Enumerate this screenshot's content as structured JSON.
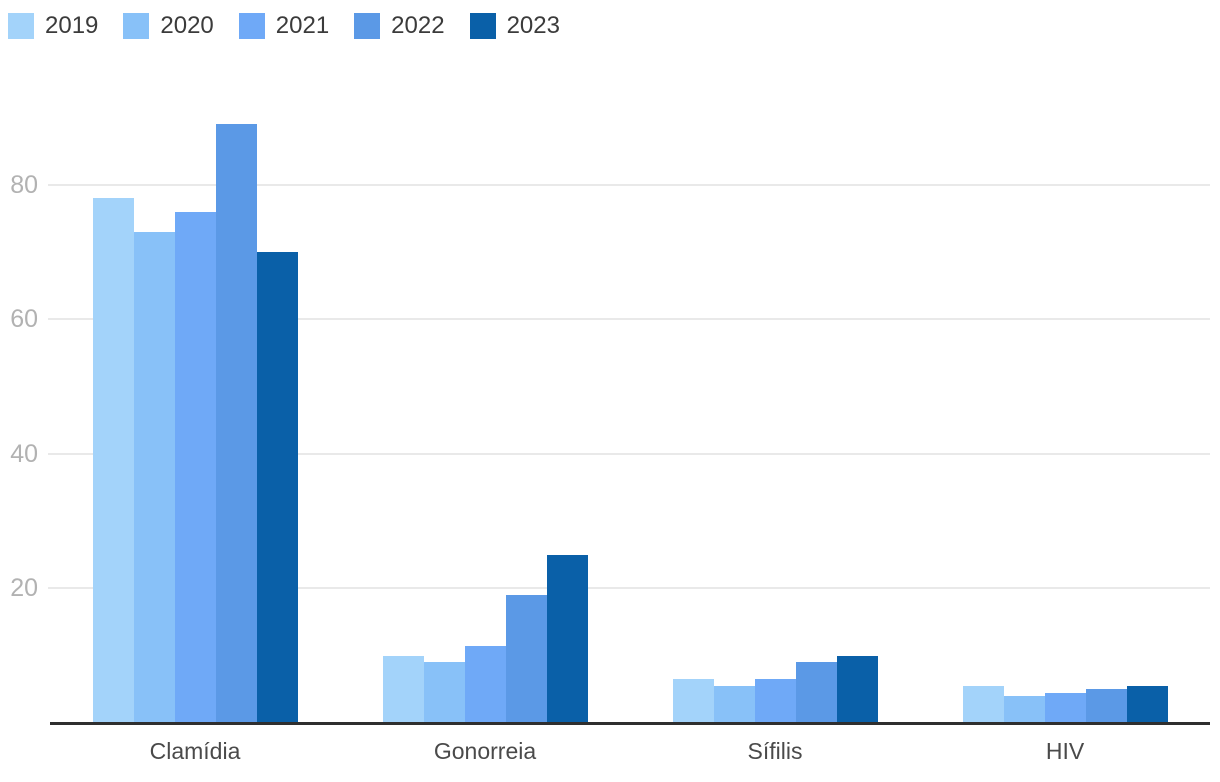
{
  "chart_data": {
    "type": "bar",
    "title": "",
    "xlabel": "",
    "ylabel": "",
    "categories": [
      "Clamídia",
      "Gonorreia",
      "Sífilis",
      "HIV"
    ],
    "series": [
      {
        "name": "2019",
        "color": "#a3d3fa",
        "values": [
          78,
          10,
          6.5,
          5.5
        ]
      },
      {
        "name": "2020",
        "color": "#88c1f8",
        "values": [
          73,
          9,
          5.5,
          4
        ]
      },
      {
        "name": "2021",
        "color": "#6fa9f7",
        "values": [
          76,
          11.5,
          6.5,
          4.5
        ]
      },
      {
        "name": "2022",
        "color": "#5b99e6",
        "values": [
          89,
          19,
          9,
          5
        ]
      },
      {
        "name": "2023",
        "color": "#0a60a8",
        "values": [
          70,
          25,
          10,
          5.5
        ]
      }
    ],
    "yticks": [
      20,
      40,
      60,
      80
    ],
    "ylim": [
      0,
      100
    ],
    "grid": true,
    "legend_position": "top-left",
    "colors": {
      "background": "#ffffff",
      "gridline": "#e9e9e9",
      "axis_line": "#2f2f2f",
      "ytick_label": "#b2b2b2",
      "xtick_label": "#4a4a4a",
      "legend_label": "#3b3b3b"
    }
  }
}
